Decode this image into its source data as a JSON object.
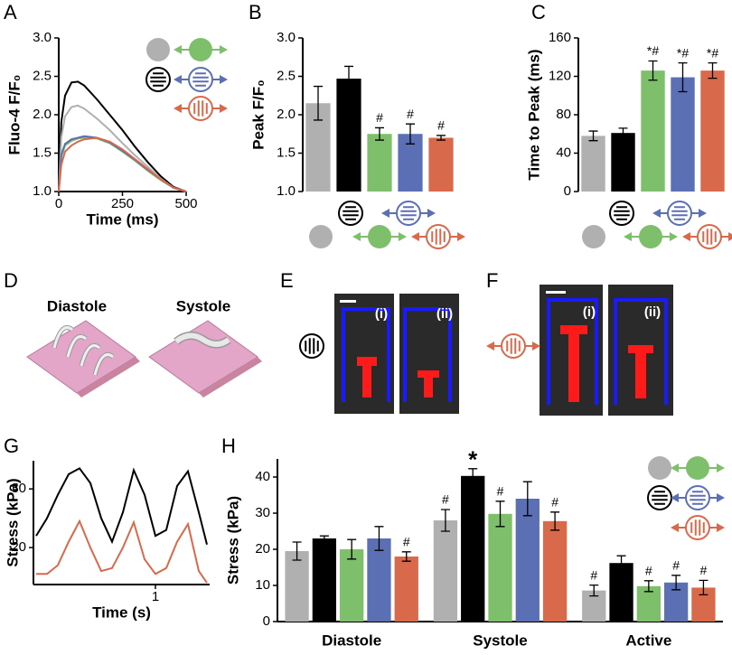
{
  "chart_data": [
    {
      "panel": "A",
      "type": "line",
      "ylabel": "Fluo-4 F/F₀",
      "xlabel": "Time (ms)",
      "x": [
        0,
        10,
        25,
        50,
        75,
        100,
        150,
        200,
        250,
        300,
        350,
        400,
        450,
        500
      ],
      "series": [
        {
          "color": "#000000",
          "values": [
            1.0,
            1.9,
            2.25,
            2.42,
            2.43,
            2.38,
            2.2,
            2.0,
            1.8,
            1.58,
            1.38,
            1.2,
            1.06,
            1.0
          ]
        },
        {
          "color": "#b0b0b0",
          "values": [
            1.0,
            1.7,
            1.98,
            2.1,
            2.12,
            2.08,
            1.95,
            1.8,
            1.63,
            1.47,
            1.32,
            1.17,
            1.05,
            1.0
          ]
        },
        {
          "color": "#7dbf6a",
          "values": [
            1.0,
            1.45,
            1.6,
            1.66,
            1.69,
            1.7,
            1.69,
            1.63,
            1.52,
            1.4,
            1.27,
            1.15,
            1.05,
            1.0
          ]
        },
        {
          "color": "#5b6fb5",
          "values": [
            1.0,
            1.48,
            1.62,
            1.68,
            1.7,
            1.72,
            1.7,
            1.64,
            1.53,
            1.41,
            1.28,
            1.16,
            1.05,
            1.0
          ]
        },
        {
          "color": "#d9694b",
          "values": [
            1.0,
            1.35,
            1.52,
            1.6,
            1.65,
            1.68,
            1.7,
            1.65,
            1.55,
            1.42,
            1.29,
            1.16,
            1.05,
            1.0
          ]
        }
      ],
      "xlim": [
        0,
        500
      ],
      "xticks": [
        0,
        250,
        500
      ],
      "ylim": [
        1,
        3
      ],
      "yticks": [
        {
          "value": 1,
          "label": "1.0"
        },
        {
          "value": 1.5,
          "label": "1.5"
        },
        {
          "value": 2,
          "label": "2.0"
        },
        {
          "value": 2.5,
          "label": "2.5"
        },
        {
          "value": 3,
          "label": "3.0"
        }
      ]
    },
    {
      "panel": "B",
      "type": "bar",
      "ylabel": "Peak F/F₀",
      "values": [
        2.15,
        2.47,
        1.75,
        1.75,
        1.7
      ],
      "errors": [
        0.22,
        0.16,
        0.08,
        0.13,
        0.03
      ],
      "colors": [
        "#b0b0b0",
        "#000000",
        "#7dbf6a",
        "#5b6fb5",
        "#d9694b"
      ],
      "markers": [
        null,
        null,
        "#",
        "#",
        "#"
      ],
      "ylim": [
        1,
        3
      ],
      "yticks": [
        {
          "value": 1,
          "label": "1.0"
        },
        {
          "value": 1.5,
          "label": "1.5"
        },
        {
          "value": 2,
          "label": "2.0"
        },
        {
          "value": 2.5,
          "label": "2.5"
        },
        {
          "value": 3,
          "label": "3.0"
        }
      ]
    },
    {
      "panel": "C",
      "type": "bar",
      "ylabel": "Time to Peak (ms)",
      "values": [
        58,
        61,
        126,
        119,
        126
      ],
      "errors": [
        5,
        5,
        10,
        15,
        8
      ],
      "colors": [
        "#b0b0b0",
        "#000000",
        "#7dbf6a",
        "#5b6fb5",
        "#d9694b"
      ],
      "markers": [
        null,
        null,
        "*#",
        "*#",
        "*#"
      ],
      "ylim": [
        0,
        160
      ],
      "yticks": [
        0,
        40,
        80,
        120,
        160
      ]
    },
    {
      "panel": "G",
      "type": "line",
      "ylabel": "Stress (kPa)",
      "xlabel": "Time (s)",
      "x": [
        0.12,
        0.2,
        0.28,
        0.36,
        0.44,
        0.52,
        0.6,
        0.68,
        0.76,
        0.84,
        0.92,
        1.0,
        1.08,
        1.16,
        1.24,
        1.32,
        1.38
      ],
      "series": [
        {
          "color": "#000000",
          "values": [
            22,
            25,
            29,
            32.5,
            33.5,
            31,
            25,
            21,
            26,
            33.2,
            29,
            22,
            23,
            30.5,
            33,
            26,
            20.5
          ]
        },
        {
          "color": "#d9694b",
          "values": [
            15.5,
            15.5,
            17,
            21,
            24.5,
            20,
            16,
            16.5,
            20,
            24.3,
            18,
            15.5,
            16.5,
            21,
            24,
            16,
            14
          ]
        }
      ],
      "xlim": [
        0.1,
        1.4
      ],
      "xticks": [
        1
      ],
      "ylim": [
        13.7,
        34.8
      ],
      "yticks": [
        20,
        30
      ]
    },
    {
      "panel": "H",
      "type": "bar",
      "ylabel": "Stress (kPa)",
      "categories": [
        "Diastole",
        "Systole",
        "Active"
      ],
      "series": [
        {
          "color": "#b0b0b0",
          "values": [
            19.5,
            28,
            8.6
          ],
          "errors": [
            2.5,
            3,
            1.5
          ],
          "markers": [
            null,
            "#",
            "#"
          ]
        },
        {
          "color": "#000000",
          "values": [
            23,
            40.3,
            16.2
          ],
          "errors": [
            0.7,
            2,
            2
          ],
          "markers": [
            null,
            "*",
            null
          ]
        },
        {
          "color": "#7dbf6a",
          "values": [
            20,
            29.8,
            9.8
          ],
          "errors": [
            2.7,
            3.5,
            1.5
          ],
          "markers": [
            null,
            "#",
            "#"
          ]
        },
        {
          "color": "#5b6fb5",
          "values": [
            23,
            34,
            10.8
          ],
          "errors": [
            3.3,
            4.7,
            2
          ],
          "markers": [
            null,
            null,
            "#"
          ]
        },
        {
          "color": "#d9694b",
          "values": [
            18,
            27.8,
            9.4
          ],
          "errors": [
            1.3,
            2.5,
            2
          ],
          "markers": [
            "#",
            "#",
            "#"
          ]
        }
      ],
      "ylim": [
        0,
        45
      ],
      "yticks": [
        0,
        10,
        20,
        30,
        40
      ]
    }
  ],
  "figure": {
    "panels": [
      {
        "label": "D",
        "texts": [
          "Diastole",
          "Systole"
        ]
      },
      {
        "label": "E",
        "texts": [
          "(i)",
          "(ii)"
        ]
      },
      {
        "label": "F",
        "texts": [
          "(i)",
          "(ii)"
        ]
      }
    ]
  }
}
